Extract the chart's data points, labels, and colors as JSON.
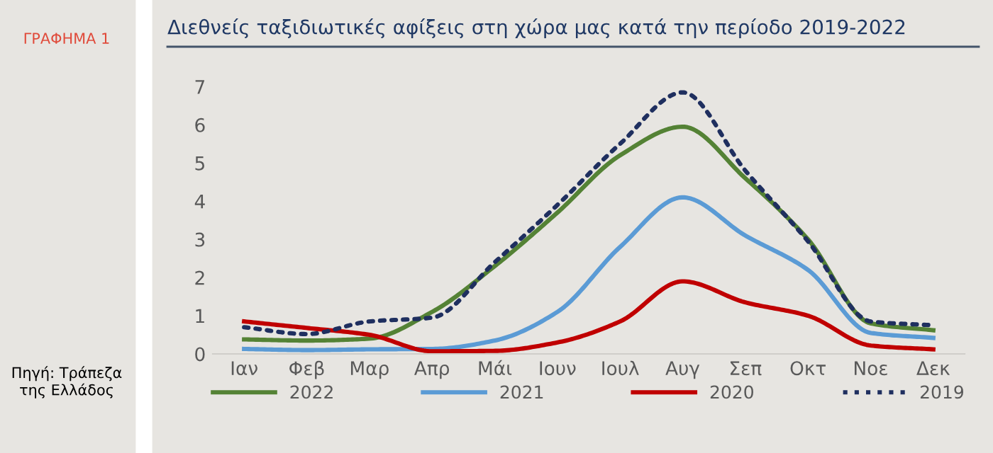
{
  "chart_data": {
    "type": "line",
    "title": "Διεθνείς ταξιδιωτικές αφίξεις στη χώρα μας κατά την περίοδο 2019-2022",
    "annotations": [
      "ΓΡΑΦΗΜΑ 1",
      "Πηγή: Τράπεζα\nτης Ελλάδος"
    ],
    "categories": [
      "Ιαν",
      "Φεβ",
      "Μαρ",
      "Απρ",
      "Μάι",
      "Ιουν",
      "Ιουλ",
      "Αυγ",
      "Σεπ",
      "Οκτ",
      "Νοε",
      "Δεκ"
    ],
    "series": [
      {
        "name": "2022",
        "color": "#548235",
        "line_style": "solid",
        "values": [
          0.38,
          0.35,
          0.4,
          1.1,
          2.3,
          3.7,
          5.2,
          5.95,
          4.6,
          3.0,
          0.8,
          0.62
        ]
      },
      {
        "name": "2021",
        "color": "#5b9bd5",
        "line_style": "solid",
        "values": [
          0.13,
          0.1,
          0.12,
          0.13,
          0.35,
          1.1,
          2.8,
          4.1,
          3.1,
          2.2,
          0.55,
          0.42
        ]
      },
      {
        "name": "2020",
        "color": "#c00000",
        "line_style": "solid",
        "values": [
          0.85,
          0.68,
          0.5,
          0.07,
          0.08,
          0.3,
          0.85,
          1.9,
          1.35,
          1.0,
          0.22,
          0.12
        ]
      },
      {
        "name": "2019",
        "color": "#1f2f5f",
        "line_style": "dotted",
        "values": [
          0.7,
          0.52,
          0.85,
          0.95,
          2.4,
          3.9,
          5.5,
          6.85,
          4.8,
          2.95,
          0.85,
          0.75
        ]
      }
    ],
    "ylim": [
      0,
      7
    ],
    "yticks": [
      0,
      1,
      2,
      3,
      4,
      5,
      6,
      7
    ],
    "grid": false,
    "legend": "bottom",
    "marker": "none"
  }
}
